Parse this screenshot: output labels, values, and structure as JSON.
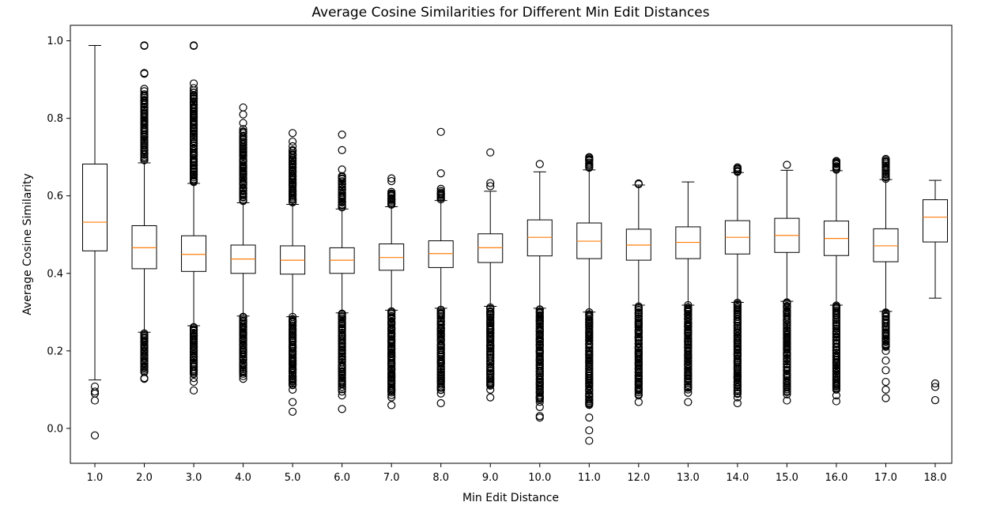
{
  "chart_data": {
    "type": "boxplot",
    "title": "Average Cosine Similarities for Different Min Edit Distances",
    "xlabel": "Min Edit Distance",
    "ylabel": "Average Cosine Similarity",
    "ylim": [
      -0.09,
      1.04
    ],
    "yticks": [
      0.0,
      0.2,
      0.4,
      0.6,
      0.8,
      1.0
    ],
    "ytick_labels": [
      "0.0",
      "0.2",
      "0.4",
      "0.6",
      "0.8",
      "1.0"
    ],
    "grid": false,
    "colors": {
      "box": "#000000",
      "median": "#ff7f0e",
      "outlier": "#000000"
    },
    "series": [
      {
        "category": "1.0",
        "whislo": 0.125,
        "q1": 0.458,
        "median": 0.532,
        "q3": 0.682,
        "whishi": 0.988,
        "outliers_low": [
          0.108,
          0.095,
          0.09,
          0.072,
          -0.018
        ],
        "outliers_high": [],
        "dense_low": null,
        "dense_high": null
      },
      {
        "category": "2.0",
        "whislo": 0.248,
        "q1": 0.412,
        "median": 0.466,
        "q3": 0.523,
        "whishi": 0.685,
        "outliers_low": [
          0.13,
          0.128
        ],
        "outliers_high": [
          0.988,
          0.988,
          0.987,
          0.917,
          0.915,
          0.876,
          0.87,
          0.862
        ],
        "dense_low": [
          0.145,
          0.245
        ],
        "dense_high": [
          0.69,
          0.86
        ]
      },
      {
        "category": "3.0",
        "whislo": 0.265,
        "q1": 0.405,
        "median": 0.449,
        "q3": 0.497,
        "whishi": 0.632,
        "outliers_low": [
          0.098,
          0.12,
          0.13
        ],
        "outliers_high": [
          0.988,
          0.988,
          0.987,
          0.89,
          0.878
        ],
        "dense_low": [
          0.14,
          0.262
        ],
        "dense_high": [
          0.636,
          0.87
        ]
      },
      {
        "category": "4.0",
        "whislo": 0.29,
        "q1": 0.4,
        "median": 0.437,
        "q3": 0.473,
        "whishi": 0.582,
        "outliers_low": [
          0.128,
          0.135
        ],
        "outliers_high": [
          0.828,
          0.81,
          0.788,
          0.772
        ],
        "dense_low": [
          0.14,
          0.288
        ],
        "dense_high": [
          0.586,
          0.768
        ]
      },
      {
        "category": "5.0",
        "whislo": 0.288,
        "q1": 0.398,
        "median": 0.434,
        "q3": 0.471,
        "whishi": 0.578,
        "outliers_low": [
          0.043,
          0.068,
          0.1
        ],
        "outliers_high": [
          0.762,
          0.74,
          0.728
        ],
        "dense_low": [
          0.11,
          0.286
        ],
        "dense_high": [
          0.582,
          0.72
        ]
      },
      {
        "category": "6.0",
        "whislo": 0.298,
        "q1": 0.4,
        "median": 0.434,
        "q3": 0.466,
        "whishi": 0.566,
        "outliers_low": [
          0.05,
          0.085,
          0.095
        ],
        "outliers_high": [
          0.758,
          0.718,
          0.668
        ],
        "dense_low": [
          0.1,
          0.296
        ],
        "dense_high": [
          0.57,
          0.65
        ]
      },
      {
        "category": "7.0",
        "whislo": 0.305,
        "q1": 0.408,
        "median": 0.441,
        "q3": 0.476,
        "whishi": 0.572,
        "outliers_low": [
          0.06,
          0.08
        ],
        "outliers_high": [
          0.645,
          0.638
        ],
        "dense_low": [
          0.088,
          0.303
        ],
        "dense_high": [
          0.576,
          0.61
        ]
      },
      {
        "category": "8.0",
        "whislo": 0.31,
        "q1": 0.415,
        "median": 0.451,
        "q3": 0.484,
        "whishi": 0.588,
        "outliers_low": [
          0.065,
          0.09
        ],
        "outliers_high": [
          0.765,
          0.658,
          0.618
        ],
        "dense_low": [
          0.098,
          0.308
        ],
        "dense_high": [
          0.592,
          0.612
        ]
      },
      {
        "category": "9.0",
        "whislo": 0.315,
        "q1": 0.428,
        "median": 0.466,
        "q3": 0.502,
        "whishi": 0.612,
        "outliers_low": [
          0.08,
          0.1
        ],
        "outliers_high": [
          0.712,
          0.633,
          0.625
        ],
        "dense_low": [
          0.11,
          0.313
        ],
        "dense_high": null
      },
      {
        "category": "10.0",
        "whislo": 0.31,
        "q1": 0.445,
        "median": 0.493,
        "q3": 0.538,
        "whishi": 0.662,
        "outliers_low": [
          0.028,
          0.032,
          0.055
        ],
        "outliers_high": [
          0.682
        ],
        "dense_low": [
          0.07,
          0.308
        ],
        "dense_high": null
      },
      {
        "category": "11.0",
        "whislo": 0.3,
        "q1": 0.438,
        "median": 0.483,
        "q3": 0.53,
        "whishi": 0.667,
        "outliers_low": [
          -0.032,
          -0.005,
          0.028
        ],
        "outliers_high": [
          0.7,
          0.695
        ],
        "dense_low": [
          0.06,
          0.298
        ],
        "dense_high": [
          0.672,
          0.698
        ]
      },
      {
        "category": "12.0",
        "whislo": 0.318,
        "q1": 0.434,
        "median": 0.473,
        "q3": 0.514,
        "whishi": 0.628,
        "outliers_low": [
          0.068,
          0.085
        ],
        "outliers_high": [
          0.632,
          0.63
        ],
        "dense_low": [
          0.09,
          0.316
        ],
        "dense_high": null
      },
      {
        "category": "13.0",
        "whislo": 0.318,
        "q1": 0.438,
        "median": 0.48,
        "q3": 0.52,
        "whishi": 0.636,
        "outliers_low": [
          0.068,
          0.092
        ],
        "outliers_high": [],
        "dense_low": [
          0.1,
          0.316
        ],
        "dense_high": null
      },
      {
        "category": "14.0",
        "whislo": 0.325,
        "q1": 0.45,
        "median": 0.493,
        "q3": 0.536,
        "whishi": 0.66,
        "outliers_low": [
          0.065,
          0.08
        ],
        "outliers_high": [
          0.673,
          0.668
        ],
        "dense_low": [
          0.09,
          0.323
        ],
        "dense_high": [
          0.662,
          0.672
        ]
      },
      {
        "category": "15.0",
        "whislo": 0.328,
        "q1": 0.454,
        "median": 0.498,
        "q3": 0.542,
        "whishi": 0.666,
        "outliers_low": [
          0.072,
          0.088
        ],
        "outliers_high": [
          0.68
        ],
        "dense_low": [
          0.095,
          0.326
        ],
        "dense_high": null
      },
      {
        "category": "16.0",
        "whislo": 0.318,
        "q1": 0.446,
        "median": 0.49,
        "q3": 0.535,
        "whishi": 0.665,
        "outliers_low": [
          0.07,
          0.085
        ],
        "outliers_high": [
          0.69,
          0.685
        ],
        "dense_low": [
          0.098,
          0.316
        ],
        "dense_high": [
          0.668,
          0.688
        ]
      },
      {
        "category": "17.0",
        "whislo": 0.302,
        "q1": 0.43,
        "median": 0.471,
        "q3": 0.515,
        "whishi": 0.642,
        "outliers_low": [
          0.078,
          0.1,
          0.12,
          0.15,
          0.175,
          0.2
        ],
        "outliers_high": [
          0.695,
          0.69
        ],
        "dense_low": [
          0.21,
          0.3
        ],
        "dense_high": [
          0.646,
          0.693
        ]
      },
      {
        "category": "18.0",
        "whislo": 0.336,
        "q1": 0.481,
        "median": 0.545,
        "q3": 0.59,
        "whishi": 0.64,
        "outliers_low": [
          0.073,
          0.107,
          0.116
        ],
        "outliers_high": [],
        "dense_low": null,
        "dense_high": null
      }
    ]
  }
}
